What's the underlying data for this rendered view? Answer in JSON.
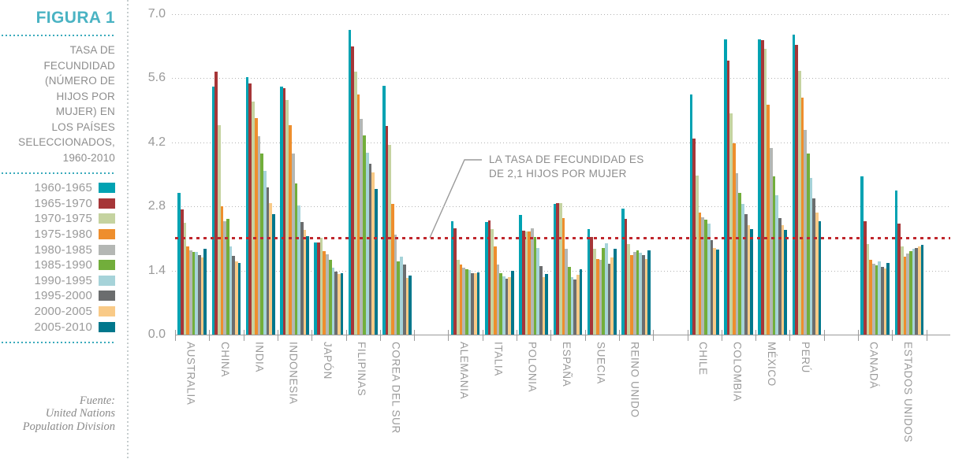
{
  "sidebar": {
    "figure_label": "FIGURA 1",
    "title_lines": [
      "TASA DE",
      "FECUNDIDAD",
      "(NÚMERO DE",
      "HIJOS POR",
      "MUJER) EN",
      "LOS PAÍSES",
      "SELECCIONADOS,",
      "1960-2010"
    ],
    "source_lines": [
      "Fuente:",
      "United Nations",
      "Population Division"
    ]
  },
  "annotation": {
    "lines": [
      "LA TASA DE FECUNDIDAD ES",
      "DE 2,1 HIJOS POR MUJER"
    ]
  },
  "chart_data": {
    "type": "bar",
    "title": "Tasa de fecundidad (número de hijos por mujer) en los países seleccionados, 1960-2010",
    "ylim": [
      0,
      7
    ],
    "yticks": [
      0,
      1.4,
      2.8,
      4.2,
      5.6,
      7
    ],
    "ytick_labels": [
      "0.0",
      "1.4",
      "2.8",
      "4.2",
      "5.6",
      "7.0"
    ],
    "grid": "horizontal dotted",
    "legend_position": "left sidebar",
    "reference_line": {
      "value": 2.1,
      "color": "#c0272d",
      "label": "LA TASA DE FECUNDIDAD ES DE 2,1 HIJOS POR MUJER"
    },
    "periods": [
      "1960-1965",
      "1965-1970",
      "1970-1975",
      "1975-1980",
      "1980-1985",
      "1985-1990",
      "1990-1995",
      "1995-2000",
      "2000-2005",
      "2005-2010"
    ],
    "period_colors": [
      "#00a2b2",
      "#a63638",
      "#c5d3a0",
      "#ee8e2d",
      "#b4b7b4",
      "#72ae3b",
      "#a6d3d9",
      "#6b6d6e",
      "#f9ca87",
      "#00778c"
    ],
    "country_groups": [
      [
        {
          "name": "AUSTRALIA",
          "values": [
            3.1,
            2.73,
            2.45,
            1.92,
            1.84,
            1.8,
            1.8,
            1.73,
            1.68,
            1.87
          ]
        },
        {
          "name": "CHINA",
          "values": [
            5.42,
            5.75,
            4.57,
            2.8,
            2.48,
            2.53,
            1.92,
            1.72,
            1.6,
            1.56
          ]
        },
        {
          "name": "INDIA",
          "values": [
            5.62,
            5.48,
            5.1,
            4.73,
            4.33,
            3.96,
            3.58,
            3.21,
            2.88,
            2.63
          ]
        },
        {
          "name": "INDONESIA",
          "values": [
            5.42,
            5.38,
            5.12,
            4.57,
            3.96,
            3.3,
            2.82,
            2.46,
            2.28,
            2.15
          ]
        },
        {
          "name": "JAPÓN",
          "values": [
            2.01,
            2.02,
            2.12,
            1.83,
            1.75,
            1.64,
            1.47,
            1.37,
            1.32,
            1.34
          ]
        },
        {
          "name": "FILIPINAS",
          "values": [
            6.65,
            6.3,
            5.75,
            5.25,
            4.72,
            4.35,
            3.98,
            3.73,
            3.54,
            3.18
          ]
        },
        {
          "name": "COREA DEL SUR",
          "values": [
            5.43,
            4.55,
            4.15,
            2.85,
            2.18,
            1.6,
            1.7,
            1.53,
            1.24,
            1.29
          ]
        }
      ],
      [
        {
          "name": "ALEMANIA",
          "values": [
            2.48,
            2.32,
            1.64,
            1.53,
            1.46,
            1.43,
            1.41,
            1.34,
            1.35,
            1.36
          ]
        },
        {
          "name": "ITALIA",
          "values": [
            2.46,
            2.5,
            2.3,
            1.92,
            1.54,
            1.35,
            1.27,
            1.23,
            1.25,
            1.4
          ]
        },
        {
          "name": "POLONIA",
          "values": [
            2.62,
            2.27,
            2.25,
            2.26,
            2.33,
            2.13,
            1.89,
            1.5,
            1.26,
            1.33
          ]
        },
        {
          "name": "ESPAÑA",
          "values": [
            2.85,
            2.88,
            2.88,
            2.55,
            1.88,
            1.48,
            1.26,
            1.2,
            1.3,
            1.42
          ]
        },
        {
          "name": "SUECIA",
          "values": [
            2.3,
            2.14,
            1.88,
            1.66,
            1.64,
            1.89,
            1.99,
            1.55,
            1.68,
            1.88
          ]
        },
        {
          "name": "REINO UNIDO",
          "values": [
            2.75,
            2.53,
            1.98,
            1.73,
            1.8,
            1.84,
            1.79,
            1.74,
            1.65,
            1.84
          ]
        }
      ],
      [
        {
          "name": "CHILE",
          "values": [
            5.25,
            4.28,
            3.47,
            2.67,
            2.57,
            2.52,
            2.42,
            2.06,
            1.9,
            1.85
          ]
        },
        {
          "name": "COLOMBIA",
          "values": [
            6.45,
            5.98,
            4.84,
            4.18,
            3.53,
            3.1,
            2.86,
            2.64,
            2.4,
            2.3
          ]
        },
        {
          "name": "MÉXICO",
          "values": [
            6.45,
            6.43,
            6.25,
            5.02,
            4.08,
            3.45,
            3.05,
            2.55,
            2.4,
            2.28
          ]
        },
        {
          "name": "PERÚ",
          "values": [
            6.55,
            6.33,
            5.76,
            5.18,
            4.47,
            3.96,
            3.42,
            2.98,
            2.66,
            2.48
          ]
        }
      ],
      [
        {
          "name": "CANADÁ",
          "values": [
            3.45,
            2.48,
            1.98,
            1.63,
            1.55,
            1.52,
            1.6,
            1.48,
            1.45,
            1.57
          ]
        },
        {
          "name": "ESTADOS UNIDOS",
          "values": [
            3.15,
            2.42,
            1.92,
            1.7,
            1.78,
            1.82,
            1.88,
            1.9,
            1.92,
            1.97
          ]
        }
      ]
    ]
  }
}
